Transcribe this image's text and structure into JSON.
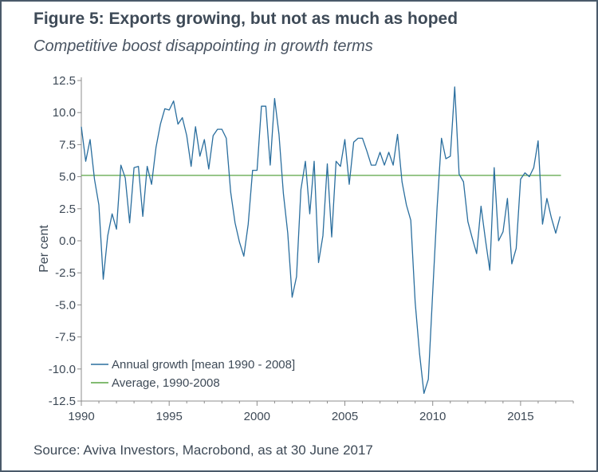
{
  "title": "Figure 5: Exports growing, but not as much as hoped",
  "subtitle": "Competitive boost disappointing in growth terms",
  "source": "Source: Aviva Investors, Macrobond, as at 30 June 2017",
  "colors": {
    "series_line": "#2a6e9e",
    "average_line": "#5aa544",
    "axis": "#8c8c8c",
    "text": "#3e4a57"
  },
  "chart_data": {
    "type": "line",
    "ylabel": "Per cent",
    "xlim": [
      1990,
      2018
    ],
    "ylim": [
      -12.5,
      12.5
    ],
    "x_ticks": [
      1990,
      1995,
      2000,
      2005,
      2010,
      2015
    ],
    "x_tick_labels": [
      "1990",
      "1995",
      "2000",
      "2005",
      "2010",
      "2015"
    ],
    "y_ticks": [
      12.5,
      10.0,
      7.5,
      5.0,
      2.5,
      0.0,
      -2.5,
      -5.0,
      -7.5,
      -10.0,
      -12.5
    ],
    "y_tick_labels": [
      "12.5",
      "10.0",
      "7.5",
      "5.0",
      "2.5",
      "0.0",
      "-2.5",
      "-5.0",
      "-7.5",
      "-10.0",
      "-12.5"
    ],
    "grid": false,
    "legend_position": "bottom-left",
    "series": [
      {
        "name": "Annual growth [mean 1990 - 2008]",
        "style": "line",
        "x": [
          1990.0,
          1990.25,
          1990.5,
          1990.75,
          1991.0,
          1991.25,
          1991.5,
          1991.75,
          1992.0,
          1992.25,
          1992.5,
          1992.75,
          1993.0,
          1993.25,
          1993.5,
          1993.75,
          1994.0,
          1994.25,
          1994.5,
          1994.75,
          1995.0,
          1995.25,
          1995.5,
          1995.75,
          1996.0,
          1996.25,
          1996.5,
          1996.75,
          1997.0,
          1997.25,
          1997.5,
          1997.75,
          1998.0,
          1998.25,
          1998.5,
          1998.75,
          1999.0,
          1999.25,
          1999.5,
          1999.75,
          2000.0,
          2000.25,
          2000.5,
          2000.75,
          2001.0,
          2001.25,
          2001.5,
          2001.75,
          2002.0,
          2002.25,
          2002.5,
          2002.75,
          2003.0,
          2003.25,
          2003.5,
          2003.75,
          2004.0,
          2004.25,
          2004.5,
          2004.75,
          2005.0,
          2005.25,
          2005.5,
          2005.75,
          2006.0,
          2006.25,
          2006.5,
          2006.75,
          2007.0,
          2007.25,
          2007.5,
          2007.75,
          2008.0,
          2008.25,
          2008.5,
          2008.75,
          2009.0,
          2009.25,
          2009.5,
          2009.75,
          2010.0,
          2010.25,
          2010.5,
          2010.75,
          2011.0,
          2011.25,
          2011.5,
          2011.75,
          2012.0,
          2012.25,
          2012.5,
          2012.75,
          2013.0,
          2013.25,
          2013.5,
          2013.75,
          2014.0,
          2014.25,
          2014.5,
          2014.75,
          2015.0,
          2015.25,
          2015.5,
          2015.75,
          2016.0,
          2016.25,
          2016.5,
          2016.75,
          2017.0,
          2017.25
        ],
        "values": [
          8.9,
          6.2,
          7.9,
          4.8,
          2.8,
          -3.0,
          0.4,
          2.1,
          0.9,
          5.9,
          4.9,
          1.4,
          5.7,
          5.8,
          1.9,
          5.8,
          4.4,
          7.3,
          9.1,
          10.3,
          10.2,
          10.9,
          9.1,
          9.6,
          8.2,
          5.8,
          8.9,
          6.6,
          7.9,
          5.6,
          8.2,
          8.7,
          8.7,
          8.0,
          3.8,
          1.4,
          -0.1,
          -1.2,
          1.3,
          5.5,
          5.5,
          10.5,
          10.5,
          5.9,
          11.1,
          8.3,
          3.7,
          0.6,
          -4.4,
          -2.8,
          4.0,
          6.2,
          2.1,
          6.2,
          -1.7,
          0.4,
          6.0,
          0.3,
          6.2,
          5.8,
          7.9,
          4.4,
          7.7,
          8.0,
          8.0,
          7.0,
          5.9,
          5.9,
          6.9,
          5.9,
          6.9,
          5.9,
          8.3,
          4.6,
          2.8,
          1.6,
          -4.8,
          -8.8,
          -11.9,
          -10.8,
          -4.0,
          2.6,
          8.0,
          6.4,
          6.6,
          12.0,
          5.2,
          4.6,
          1.5,
          0.2,
          -1.0,
          2.7,
          0.1,
          -2.3,
          5.7,
          0.0,
          0.7,
          3.3,
          -1.8,
          -0.6,
          4.8,
          5.3,
          5.0,
          5.7,
          7.8,
          1.3,
          3.3,
          1.8,
          0.6,
          1.9
        ]
      },
      {
        "name": "Average, 1990-2008",
        "style": "hline",
        "x": [
          1990.0,
          2017.3
        ],
        "values": [
          5.1,
          5.1
        ]
      }
    ]
  }
}
